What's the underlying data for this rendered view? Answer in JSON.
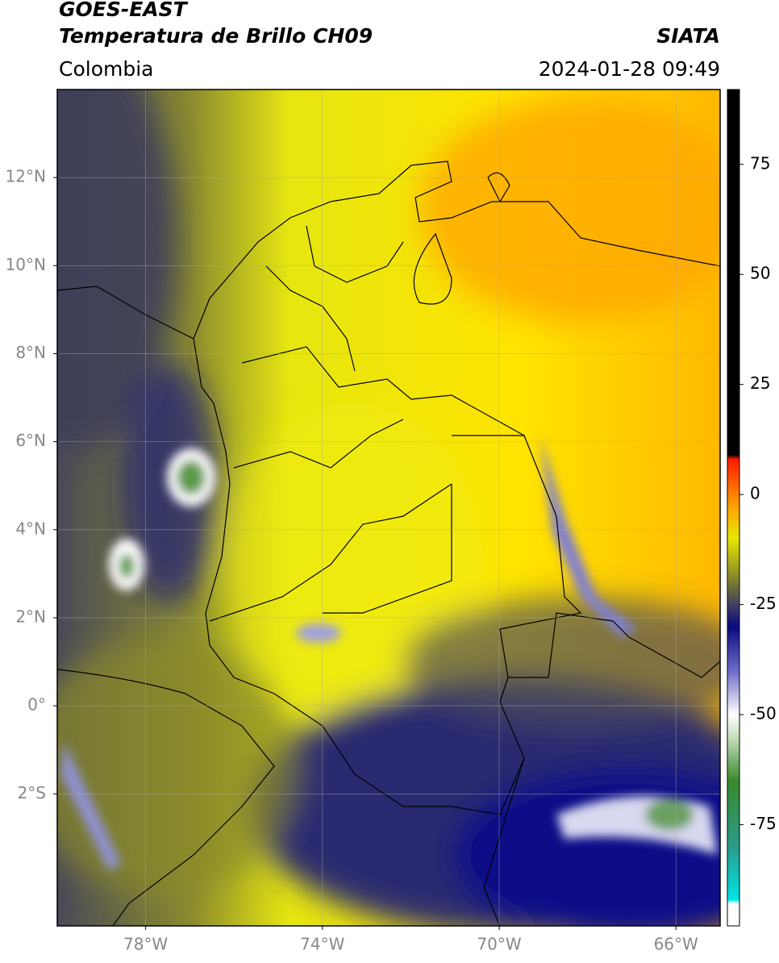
{
  "header": {
    "title": "GOES-EAST",
    "subtitle": "Temperatura de Brillo CH09",
    "source": "SIATA",
    "region": "Colombia",
    "datetime": "2024-01-28 09:49"
  },
  "map": {
    "lon_lim": [
      -80,
      -65
    ],
    "lat_lim": [
      -5,
      14
    ],
    "lat_ticks": [
      {
        "value": 12,
        "label": "12°N"
      },
      {
        "value": 10,
        "label": "10°N"
      },
      {
        "value": 8,
        "label": "8°N"
      },
      {
        "value": 6,
        "label": "6°N"
      },
      {
        "value": 4,
        "label": "4°N"
      },
      {
        "value": 2,
        "label": "2°N"
      },
      {
        "value": 0,
        "label": "0°"
      },
      {
        "value": -2,
        "label": "2°S"
      }
    ],
    "lon_ticks": [
      {
        "value": -78,
        "label": "78°W"
      },
      {
        "value": -74,
        "label": "74°W"
      },
      {
        "value": -70,
        "label": "70°W"
      },
      {
        "value": -66,
        "label": "66°W"
      }
    ],
    "grid": true
  },
  "colorbar": {
    "lim": [
      -98,
      92
    ],
    "ticks": [
      75,
      50,
      25,
      0,
      -25,
      -50,
      -75
    ],
    "stops": [
      [
        -98,
        "#ffffff"
      ],
      [
        -93,
        "#ffffff"
      ],
      [
        -92,
        "#00e5e5"
      ],
      [
        -80,
        "#2a9a8a"
      ],
      [
        -65,
        "#3a8a2a"
      ],
      [
        -55,
        "#c8e0c0"
      ],
      [
        -50,
        "#ffffff"
      ],
      [
        -40,
        "#6a6ac8"
      ],
      [
        -30,
        "#0a0a80"
      ],
      [
        -25,
        "#404060"
      ],
      [
        -20,
        "#7a7a30"
      ],
      [
        -10,
        "#e8e800"
      ],
      [
        -2,
        "#ff9a00"
      ],
      [
        8,
        "#ff1a00"
      ],
      [
        9,
        "#000000"
      ],
      [
        92,
        "#000000"
      ]
    ]
  }
}
